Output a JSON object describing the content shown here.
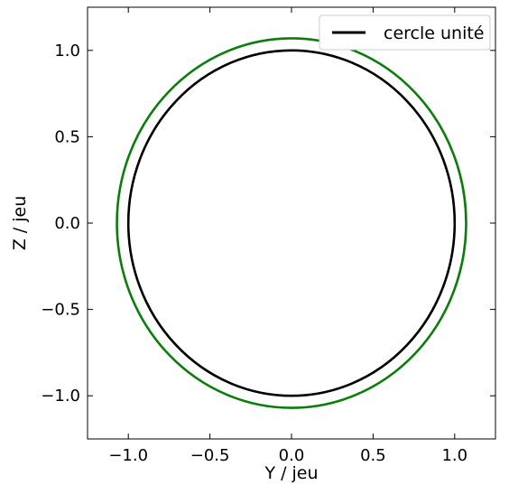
{
  "chart_data": {
    "type": "line",
    "title": "",
    "xlabel": "Y / jeu",
    "ylabel": "Z / jeu",
    "xlim": [
      -1.25,
      1.25
    ],
    "ylim": [
      -1.25,
      1.25
    ],
    "xticks": [
      -1.0,
      -0.5,
      0.0,
      0.5,
      1.0
    ],
    "yticks": [
      -1.0,
      -0.5,
      0.0,
      0.5,
      1.0
    ],
    "xtick_labels": [
      "−1.0",
      "−0.5",
      "0.0",
      "0.5",
      "1.0"
    ],
    "ytick_labels": [
      "−1.0",
      "−0.5",
      "0.0",
      "0.5",
      "1.0"
    ],
    "grid": false,
    "legend_position": "top-right",
    "series": [
      {
        "name": "",
        "shape": "circle",
        "center": [
          0.0,
          0.0
        ],
        "radius": 1.07,
        "color": "#0a7d0a"
      },
      {
        "name": "cercle unité",
        "shape": "circle",
        "center": [
          0.0,
          0.0
        ],
        "radius": 1.0,
        "color": "#000000"
      }
    ]
  }
}
